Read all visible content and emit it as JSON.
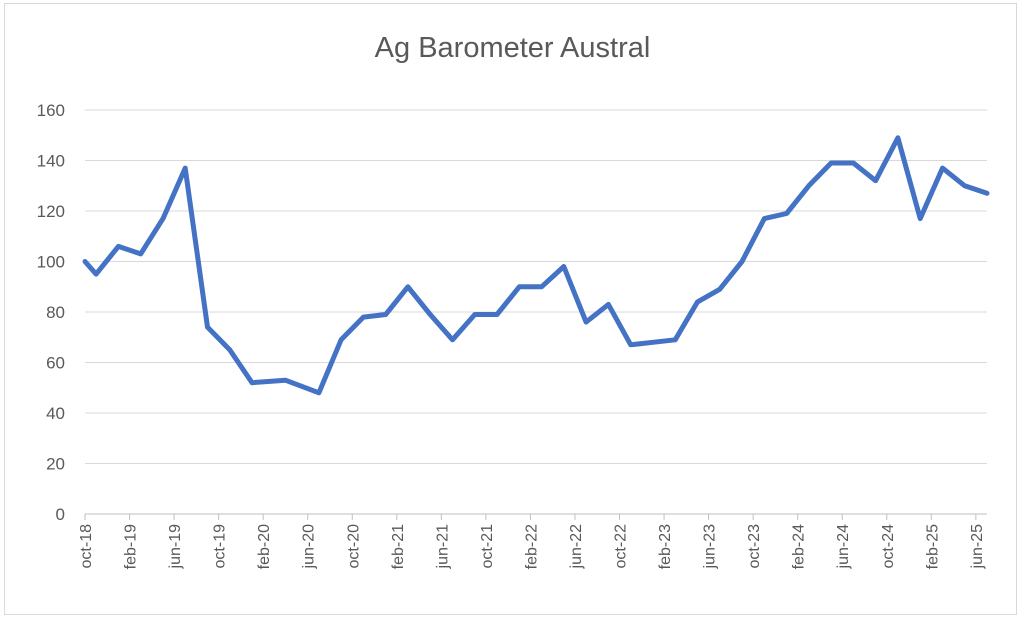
{
  "chart_data": {
    "type": "line",
    "title": "Ag Barometer Austral",
    "xlabel": "",
    "ylabel": "",
    "ylim": [
      0,
      160
    ],
    "yticks": [
      0,
      20,
      40,
      60,
      80,
      100,
      120,
      140,
      160
    ],
    "grid": true,
    "legend": "none",
    "x": [
      "oct-18",
      "nov-18",
      "dec-18",
      "jan-19",
      "feb-19",
      "mar-19",
      "apr-19",
      "may-19",
      "jun-19",
      "jul-19",
      "aug-19",
      "sep-19",
      "oct-19",
      "nov-19",
      "dec-19",
      "jan-20",
      "feb-20",
      "mar-20",
      "apr-20",
      "may-20",
      "jun-20",
      "jul-20",
      "aug-20",
      "sep-20",
      "oct-20",
      "nov-20",
      "dec-20",
      "jan-21",
      "feb-21",
      "mar-21",
      "apr-21",
      "may-21",
      "jun-21",
      "jul-21",
      "aug-21",
      "sep-21",
      "oct-21",
      "nov-21",
      "dec-21",
      "jan-22",
      "feb-22",
      "mar-22",
      "apr-22",
      "may-22",
      "jun-22",
      "jul-22",
      "aug-22",
      "sep-22",
      "oct-22",
      "nov-22",
      "dec-22",
      "jan-23",
      "feb-23",
      "mar-23",
      "apr-23",
      "may-23",
      "jun-23",
      "jul-23",
      "aug-23",
      "sep-23",
      "oct-23",
      "nov-23",
      "dec-23",
      "jan-24",
      "feb-24",
      "mar-24",
      "apr-24",
      "may-24",
      "jun-24",
      "jul-24",
      "aug-24",
      "sep-24",
      "oct-24",
      "nov-24",
      "dec-24",
      "jan-25",
      "feb-25",
      "mar-25",
      "apr-25",
      "may-25",
      "jun-25",
      "jul-25"
    ],
    "xtick_labels": [
      "oct-18",
      "feb-19",
      "jun-19",
      "oct-19",
      "feb-20",
      "jun-20",
      "oct-20",
      "feb-21",
      "jun-21",
      "oct-21",
      "feb-22",
      "jun-22",
      "oct-22",
      "feb-23",
      "jun-23",
      "oct-23",
      "feb-24",
      "jun-24",
      "oct-24",
      "feb-25",
      "jun-25"
    ],
    "series": [
      {
        "color": "#4472c4",
        "points": [
          {
            "x": "oct-18",
            "y": 100
          },
          {
            "x": "nov-18",
            "y": 95
          },
          {
            "x": "jan-19",
            "y": 106
          },
          {
            "x": "mar-19",
            "y": 103
          },
          {
            "x": "may-19",
            "y": 117
          },
          {
            "x": "jul-19",
            "y": 137
          },
          {
            "x": "sep-19",
            "y": 74
          },
          {
            "x": "nov-19",
            "y": 65
          },
          {
            "x": "jan-20",
            "y": 52
          },
          {
            "x": "apr-20",
            "y": 53
          },
          {
            "x": "jul-20",
            "y": 48
          },
          {
            "x": "sep-20",
            "y": 69
          },
          {
            "x": "nov-20",
            "y": 78
          },
          {
            "x": "jan-21",
            "y": 79
          },
          {
            "x": "mar-21",
            "y": 90
          },
          {
            "x": "may-21",
            "y": 79
          },
          {
            "x": "jul-21",
            "y": 69
          },
          {
            "x": "sep-21",
            "y": 79
          },
          {
            "x": "nov-21",
            "y": 79
          },
          {
            "x": "jan-22",
            "y": 90
          },
          {
            "x": "mar-22",
            "y": 90
          },
          {
            "x": "may-22",
            "y": 98
          },
          {
            "x": "jul-22",
            "y": 76
          },
          {
            "x": "sep-22",
            "y": 83
          },
          {
            "x": "nov-22",
            "y": 67
          },
          {
            "x": "jan-23",
            "y": 68
          },
          {
            "x": "mar-23",
            "y": 69
          },
          {
            "x": "may-23",
            "y": 84
          },
          {
            "x": "jul-23",
            "y": 89
          },
          {
            "x": "sep-23",
            "y": 100
          },
          {
            "x": "nov-23",
            "y": 117
          },
          {
            "x": "jan-24",
            "y": 119
          },
          {
            "x": "mar-24",
            "y": 130
          },
          {
            "x": "may-24",
            "y": 139
          },
          {
            "x": "jul-24",
            "y": 139
          },
          {
            "x": "sep-24",
            "y": 132
          },
          {
            "x": "nov-24",
            "y": 149
          },
          {
            "x": "jan-25",
            "y": 117
          },
          {
            "x": "mar-25",
            "y": 137
          },
          {
            "x": "may-25",
            "y": 130
          },
          {
            "x": "jul-25",
            "y": 127
          }
        ]
      }
    ]
  }
}
